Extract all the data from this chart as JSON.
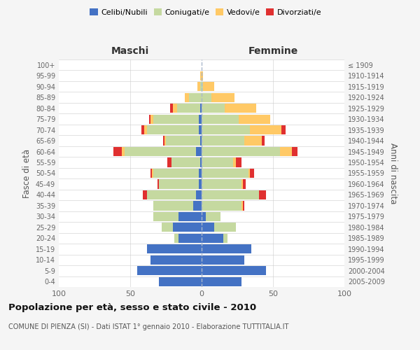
{
  "age_groups": [
    "0-4",
    "5-9",
    "10-14",
    "15-19",
    "20-24",
    "25-29",
    "30-34",
    "35-39",
    "40-44",
    "45-49",
    "50-54",
    "55-59",
    "60-64",
    "65-69",
    "70-74",
    "75-79",
    "80-84",
    "85-89",
    "90-94",
    "95-99",
    "100+"
  ],
  "birth_years": [
    "2005-2009",
    "2000-2004",
    "1995-1999",
    "1990-1994",
    "1985-1989",
    "1980-1984",
    "1975-1979",
    "1970-1974",
    "1965-1969",
    "1960-1964",
    "1955-1959",
    "1950-1954",
    "1945-1949",
    "1940-1944",
    "1935-1939",
    "1930-1934",
    "1925-1929",
    "1920-1924",
    "1915-1919",
    "1910-1914",
    "≤ 1909"
  ],
  "maschi": {
    "celibi": [
      30,
      45,
      36,
      38,
      16,
      20,
      16,
      6,
      4,
      2,
      2,
      1,
      4,
      1,
      2,
      2,
      1,
      0,
      0,
      0,
      0
    ],
    "coniugati": [
      0,
      0,
      0,
      0,
      3,
      8,
      18,
      28,
      34,
      28,
      32,
      20,
      50,
      24,
      36,
      32,
      16,
      9,
      1,
      0,
      0
    ],
    "vedovi": [
      0,
      0,
      0,
      0,
      0,
      0,
      0,
      0,
      0,
      0,
      1,
      0,
      2,
      1,
      2,
      2,
      3,
      3,
      2,
      1,
      0
    ],
    "divorziati": [
      0,
      0,
      0,
      0,
      0,
      0,
      0,
      0,
      3,
      1,
      1,
      3,
      6,
      1,
      2,
      1,
      2,
      0,
      0,
      0,
      0
    ]
  },
  "femmine": {
    "nubili": [
      28,
      45,
      30,
      35,
      15,
      9,
      3,
      0,
      0,
      0,
      0,
      0,
      0,
      0,
      0,
      0,
      0,
      0,
      0,
      0,
      0
    ],
    "coniugate": [
      0,
      0,
      0,
      0,
      3,
      15,
      10,
      28,
      40,
      28,
      33,
      22,
      55,
      30,
      34,
      26,
      16,
      7,
      1,
      0,
      0
    ],
    "vedove": [
      0,
      0,
      0,
      0,
      0,
      0,
      0,
      1,
      0,
      1,
      1,
      2,
      8,
      12,
      22,
      22,
      22,
      16,
      8,
      1,
      0
    ],
    "divorziate": [
      0,
      0,
      0,
      0,
      0,
      0,
      0,
      1,
      5,
      2,
      3,
      4,
      4,
      2,
      3,
      0,
      0,
      0,
      0,
      0,
      0
    ]
  },
  "colors": {
    "celibi_nubili": "#4472c4",
    "coniugati": "#c5d9a0",
    "vedovi": "#ffc966",
    "divorziati": "#e03030"
  },
  "xlim": 100,
  "title": "Popolazione per età, sesso e stato civile - 2010",
  "subtitle": "COMUNE DI PIENZA (SI) - Dati ISTAT 1° gennaio 2010 - Elaborazione TUTTITALIA.IT",
  "ylabel_left": "Fasce di età",
  "ylabel_right": "Anni di nascita",
  "xlabel_left": "Maschi",
  "xlabel_right": "Femmine",
  "bg_color": "#f5f5f5",
  "plot_bg_color": "#ffffff"
}
